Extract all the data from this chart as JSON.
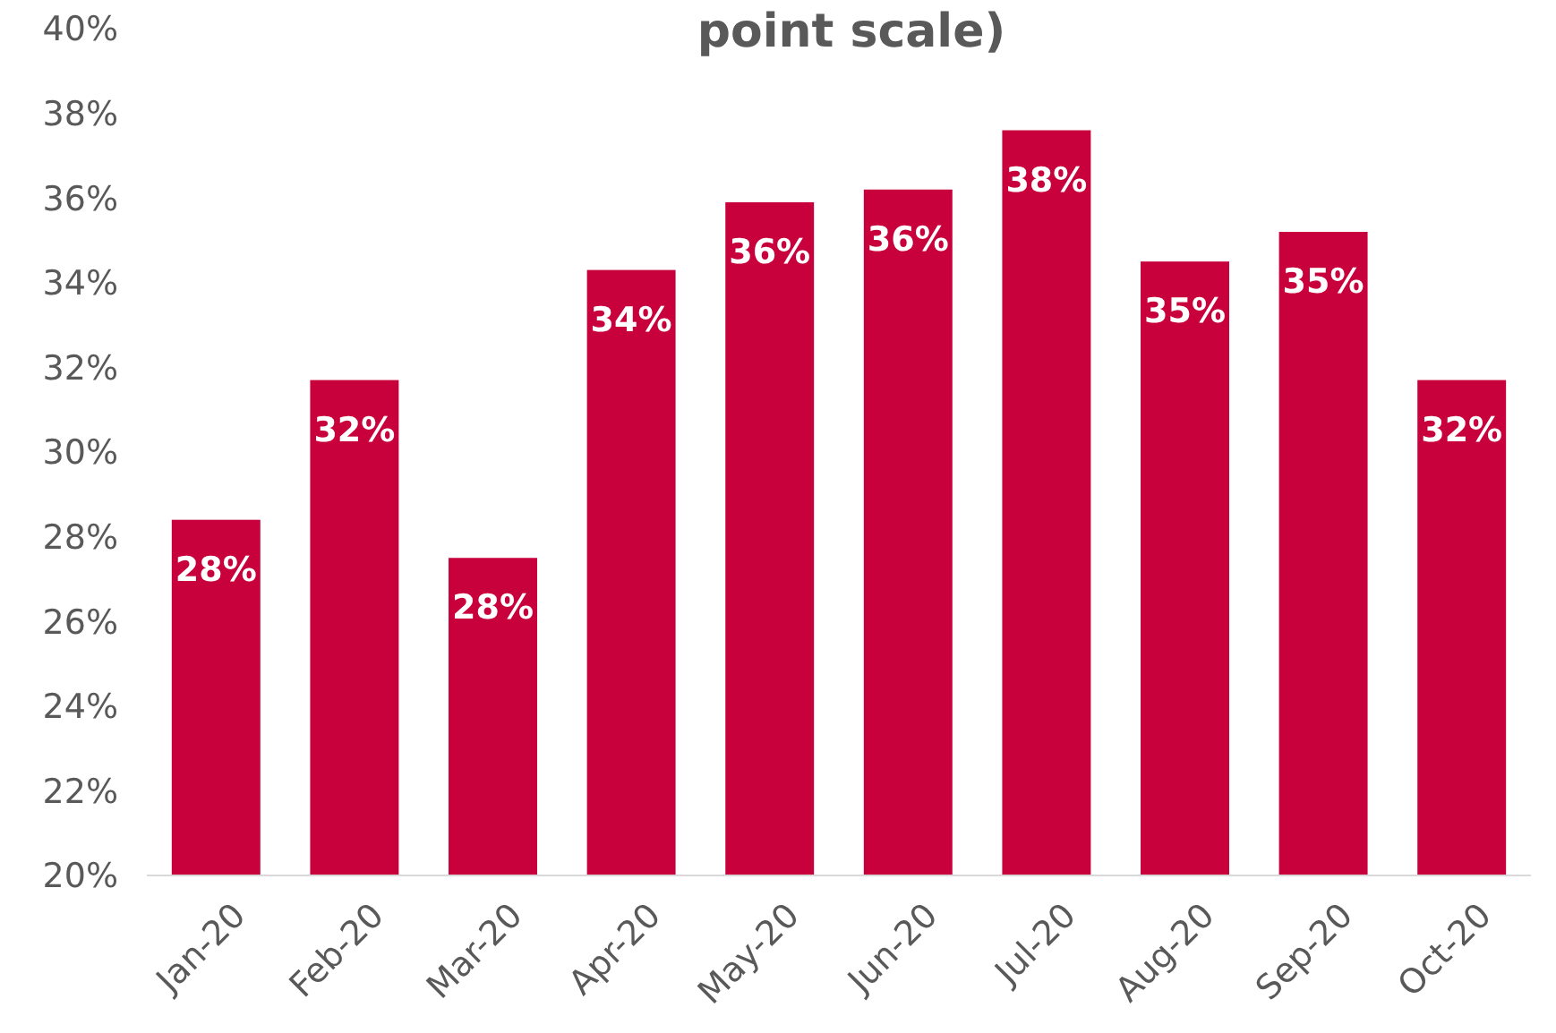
{
  "chart_data": {
    "type": "bar",
    "title": "point scale)",
    "categories": [
      "Jan-20",
      "Feb-20",
      "Mar-20",
      "Apr-20",
      "May-20",
      "Jun-20",
      "Jul-20",
      "Aug-20",
      "Sep-20",
      "Oct-20"
    ],
    "values": [
      28.4,
      31.7,
      27.5,
      34.3,
      35.9,
      36.2,
      37.6,
      34.5,
      35.2,
      31.7
    ],
    "value_labels": [
      "28%",
      "32%",
      "28%",
      "34%",
      "36%",
      "36%",
      "38%",
      "35%",
      "35%",
      "32%"
    ],
    "color": "#c8003c",
    "ylim": [
      20,
      40
    ],
    "yticks": [
      {
        "value": 20,
        "label": "20%"
      },
      {
        "value": 22,
        "label": "22%"
      },
      {
        "value": 24,
        "label": "24%"
      },
      {
        "value": 26,
        "label": "26%"
      },
      {
        "value": 28,
        "label": "28%"
      },
      {
        "value": 30,
        "label": "30%"
      },
      {
        "value": 32,
        "label": "32%"
      },
      {
        "value": 34,
        "label": "34%"
      },
      {
        "value": 36,
        "label": "36%"
      },
      {
        "value": 38,
        "label": "38%"
      },
      {
        "value": 40,
        "label": "40%"
      }
    ],
    "grid": false
  }
}
